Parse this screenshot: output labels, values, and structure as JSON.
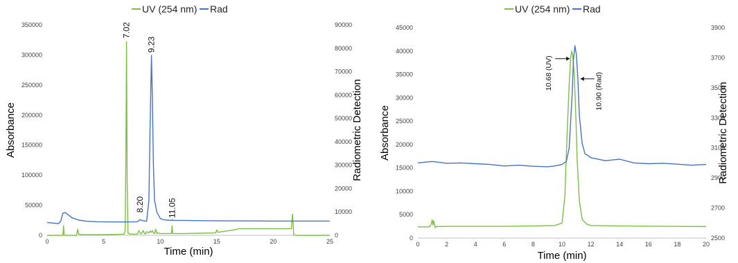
{
  "colors": {
    "uv": "#7cbf41",
    "rad": "#4472c4",
    "axis": "#bfbfbf"
  },
  "chart_data": [
    {
      "type": "line",
      "legend": [
        "UV (254 nm)",
        "Rad"
      ],
      "legend_position": "top",
      "xlabel": "Time (min)",
      "ylabel": "Absorbance",
      "y2label": "Radiometric Detection",
      "xlim": [
        0,
        25
      ],
      "ylim": [
        0,
        350000
      ],
      "y2lim": [
        0,
        90000
      ],
      "xticks": [
        0,
        5,
        10,
        15,
        20,
        25
      ],
      "yticks": [
        0,
        50000,
        100000,
        150000,
        200000,
        250000,
        300000,
        350000
      ],
      "y2ticks": [
        0,
        10000,
        20000,
        30000,
        40000,
        50000,
        60000,
        70000,
        80000,
        90000
      ],
      "annotations": [
        {
          "text": "7.02",
          "x": 7.02,
          "y": 322000
        },
        {
          "text": "8.20",
          "x": 8.2,
          "y": 32000
        },
        {
          "text": "9.23",
          "x": 9.23,
          "y": 298000
        },
        {
          "text": "11.05",
          "x": 11.05,
          "y": 23000
        }
      ],
      "series": [
        {
          "name": "UV (254 nm)",
          "axis": "left",
          "x": [
            0,
            1.4,
            1.45,
            1.5,
            1.6,
            2.6,
            2.7,
            2.8,
            3.0,
            5.0,
            6.8,
            6.9,
            6.96,
            7.02,
            7.08,
            7.15,
            7.3,
            8.0,
            8.1,
            8.2,
            8.3,
            8.5,
            8.6,
            8.7,
            8.8,
            9.0,
            9.1,
            9.2,
            9.3,
            9.4,
            9.5,
            9.6,
            9.7,
            9.8,
            10.0,
            11.0,
            11.05,
            11.1,
            11.2,
            11.5,
            12.0,
            14.9,
            15.0,
            15.1,
            16.5,
            17.0,
            21.6,
            21.7,
            21.75,
            21.8,
            22.0,
            25.0
          ],
          "y": [
            0,
            0,
            16000,
            500,
            0,
            0,
            10000,
            2000,
            1000,
            1000,
            2000,
            8000,
            120000,
            322000,
            90000,
            4000,
            2000,
            2000,
            8000,
            5000,
            2000,
            8000,
            3000,
            2000,
            6000,
            4000,
            7000,
            5000,
            8000,
            4000,
            3000,
            10000,
            3000,
            4000,
            3000,
            3000,
            16000,
            3000,
            3000,
            3000,
            3000,
            4000,
            9000,
            5000,
            9000,
            11000,
            11000,
            35000,
            20000,
            1000,
            0,
            0
          ]
        },
        {
          "name": "Rad",
          "axis": "right",
          "x": [
            0,
            1.0,
            1.2,
            1.4,
            1.6,
            1.8,
            2.2,
            2.8,
            3.5,
            4.5,
            6.0,
            7.0,
            8.0,
            8.2,
            8.4,
            8.8,
            9.0,
            9.1,
            9.23,
            9.3,
            9.4,
            9.5,
            9.7,
            10.0,
            10.3,
            10.6,
            11.0,
            11.05,
            11.1,
            12.0,
            13.0,
            15.0,
            20.0,
            25.0
          ],
          "y": [
            5500,
            5000,
            6000,
            9500,
            9700,
            9000,
            7500,
            6500,
            6000,
            5800,
            5700,
            5700,
            5800,
            6700,
            6300,
            6000,
            15000,
            45000,
            77000,
            60000,
            30000,
            15000,
            10000,
            7200,
            6700,
            6500,
            6400,
            6700,
            6400,
            6400,
            6300,
            6200,
            6100,
            6100
          ]
        }
      ]
    },
    {
      "type": "line",
      "legend": [
        "UV (254 nm)",
        "Rad"
      ],
      "legend_position": "top",
      "xlabel": "Time (min)",
      "ylabel": "Absorbance",
      "y2label": "Radiometric Detection",
      "xlim": [
        0,
        20
      ],
      "ylim": [
        0,
        45000
      ],
      "y2lim": [
        2500,
        3900
      ],
      "xticks": [
        0,
        2,
        4,
        6,
        8,
        10,
        12,
        14,
        16,
        18,
        20
      ],
      "yticks": [
        0,
        5000,
        10000,
        15000,
        20000,
        25000,
        30000,
        35000,
        40000,
        45000
      ],
      "y2ticks": [
        2500,
        2700,
        2900,
        3100,
        3300,
        3500,
        3700,
        3900
      ],
      "annotations": [
        {
          "text": "10.68 (UV)",
          "x": 10.68,
          "y": 40000
        },
        {
          "text": "10.90 (Rad)",
          "x": 10.9,
          "y": 3560
        }
      ],
      "series": [
        {
          "name": "UV (254 nm)",
          "axis": "left",
          "x": [
            0,
            0.8,
            0.9,
            1.0,
            1.05,
            1.1,
            1.2,
            1.3,
            1.5,
            2.0,
            4.0,
            6.0,
            8.0,
            9.5,
            10.0,
            10.2,
            10.35,
            10.5,
            10.6,
            10.68,
            10.75,
            10.85,
            10.95,
            11.05,
            11.2,
            11.4,
            11.7,
            12.0,
            14.0,
            16.0,
            18.0,
            20.0
          ],
          "y": [
            2400,
            2400,
            2800,
            3900,
            2800,
            3700,
            2200,
            2500,
            2450,
            2500,
            2500,
            2500,
            2600,
            2700,
            3200,
            9000,
            22000,
            33000,
            38500,
            40000,
            39000,
            35000,
            27000,
            17000,
            8000,
            4000,
            3000,
            2700,
            2600,
            2550,
            2500,
            2450
          ]
        },
        {
          "name": "Rad",
          "axis": "right",
          "x": [
            0,
            0.5,
            1.0,
            2.0,
            3.0,
            4.0,
            5.0,
            6.0,
            7.0,
            8.0,
            9.0,
            9.5,
            10.0,
            10.3,
            10.5,
            10.7,
            10.8,
            10.9,
            11.0,
            11.1,
            11.2,
            11.4,
            11.6,
            11.8,
            12.0,
            13.0,
            14.0,
            15.0,
            16.0,
            17.0,
            18.0,
            19.0,
            20.0
          ],
          "y": [
            3000,
            3005,
            3010,
            2998,
            3000,
            2995,
            2990,
            2980,
            2985,
            2978,
            2975,
            2980,
            2990,
            3010,
            3100,
            3450,
            3690,
            3780,
            3720,
            3560,
            3320,
            3130,
            3060,
            3050,
            3035,
            3015,
            3025,
            3000,
            2995,
            2998,
            2992,
            2985,
            2990
          ]
        }
      ]
    }
  ]
}
